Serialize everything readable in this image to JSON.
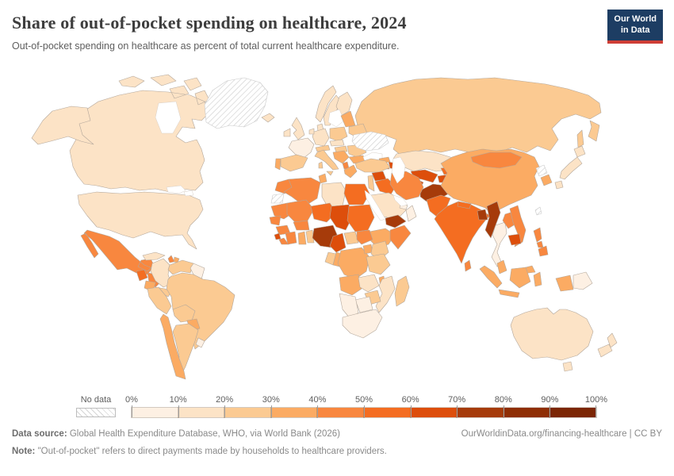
{
  "header": {
    "title": "Share of out-of-pocket spending on healthcare, 2024",
    "subtitle": "Out-of-pocket spending on healthcare as percent of total current healthcare expenditure.",
    "logo": {
      "line1": "Our World",
      "line2": "in Data",
      "bg_color": "#1d3d63",
      "accent_color": "#cf3e36"
    }
  },
  "legend": {
    "no_data_label": "No data",
    "tick_labels": [
      "0%",
      "10%",
      "20%",
      "30%",
      "40%",
      "50%",
      "60%",
      "70%",
      "80%",
      "90%",
      "100%"
    ],
    "bins": [
      "0-10",
      "10-20",
      "20-30",
      "30-40",
      "40-50",
      "50-60",
      "60-70",
      "70-80",
      "80-90",
      "90-100"
    ],
    "colors": [
      "#fdf0e3",
      "#fce3c6",
      "#fbca92",
      "#fbab63",
      "#f8873f",
      "#f46d21",
      "#dd4e0b",
      "#a63b0a",
      "#8f2e04",
      "#7c2604"
    ]
  },
  "footer": {
    "datasource_label": "Data source:",
    "datasource_text": " Global Health Expenditure Database, WHO, via World Bank (2026)",
    "attribution": "OurWorldinData.org/financing-healthcare | CC BY",
    "note_label": "Note:",
    "note_text": " \"Out-of-pocket\" refers to direct payments made by households to healthcare providers."
  },
  "chart_data": {
    "type": "choropleth_map",
    "title": "Share of out-of-pocket spending on healthcare, 2024",
    "unit": "% of total current healthcare expenditure",
    "legend_position": "bottom",
    "no_data_style": "diagonal-hatch",
    "bin_width_percent": 10,
    "range": [
      0,
      100
    ],
    "countries": {
      "canada": "10-20",
      "usa": "10-20",
      "greenland": "no-data",
      "mexico": "40-50",
      "guatemala": "50-60",
      "honduras-nicaragua": "40-50",
      "costa-rica-panama": "20-30",
      "cuba": "10-20",
      "haiti": "40-50",
      "dominican-republic": "30-40",
      "colombia": "10-20",
      "venezuela": "20-30",
      "guyana-suriname": "0-10",
      "ecuador": "30-40",
      "peru": "20-30",
      "brazil": "20-30",
      "bolivia": "20-30",
      "paraguay": "30-40",
      "chile": "30-40",
      "argentina": "20-30",
      "uruguay": "0-10",
      "iceland": "10-20",
      "uk": "10-20",
      "ireland": "10-20",
      "norway": "10-20",
      "sweden": "10-20",
      "finland": "10-20",
      "denmark": "10-20",
      "germany": "10-20",
      "netherlands": "10-20",
      "france": "0-10",
      "spain": "20-30",
      "portugal": "30-40",
      "italy": "20-30",
      "switzerland-austria": "20-30",
      "czech-slovakia": "10-20",
      "poland": "20-30",
      "hungary": "20-30",
      "balkans-west": "30-40",
      "albania": "40-50",
      "greece": "30-40",
      "bulgaria": "30-40",
      "romania": "20-30",
      "baltics": "30-40",
      "belarus": "20-30",
      "ukraine": "no-data",
      "russia": "20-30",
      "kazakhstan": "10-20",
      "uzbekistan": "60-70",
      "turkmenistan": "60-70",
      "kyrgyzstan": "50-60",
      "tajikistan": "60-70",
      "afghanistan": "70-80",
      "georgia": "30-40",
      "armenia": "40-50",
      "azerbaijan": "60-70",
      "turkey": "20-30",
      "syria": "60-70",
      "levant": "20-30",
      "iraq": "50-60",
      "iran": "40-50",
      "saudi-arabia": "10-20",
      "yemen": "70-80",
      "oman": "0-10",
      "uae": "0-10",
      "morocco": "40-50",
      "western-sahara": "no-data",
      "algeria": "40-50",
      "tunisia": "30-40",
      "libya": "10-20",
      "egypt": "50-60",
      "mauritania": "40-50",
      "mali": "40-50",
      "niger": "50-60",
      "chad": "60-70",
      "sudan": "50-60",
      "ethiopia": "30-40",
      "somalia": "40-50",
      "senegal": "40-50",
      "guinea": "40-50",
      "sierra-leone": "60-70",
      "liberia": "40-50",
      "cote-divoire": "40-50",
      "ghana": "30-40",
      "togo-benin": "20-30",
      "burkina-faso": "40-50",
      "nigeria": "70-80",
      "cameroon": "60-70",
      "central-african-republic": "20-30",
      "south-sudan": "40-50",
      "gabon": "20-30",
      "congo": "30-40",
      "drc": "30-40",
      "uganda": "30-40",
      "kenya": "20-30",
      "tanzania": "20-30",
      "angola": "30-40",
      "zambia": "10-20",
      "malawi": "30-40",
      "mozambique": "10-20",
      "zimbabwe": "20-30",
      "botswana": "0-10",
      "namibia": "0-10",
      "south-africa": "0-10",
      "madagascar": "20-30",
      "pakistan": "50-60",
      "india": "50-60",
      "nepal": "50-60",
      "bangladesh": "70-80",
      "sri-lanka": "40-50",
      "myanmar": "70-80",
      "thailand": "0-10",
      "laos": "40-50",
      "vietnam": "40-50",
      "cambodia": "60-70",
      "malaysia": "30-40",
      "indonesia": "30-40",
      "philippines": "40-50",
      "papua-new-guinea": "0-10",
      "china": "30-40",
      "mongolia": "40-50",
      "north-korea": "no-data",
      "south-korea": "30-40",
      "japan": "10-20",
      "taiwan": "no-data",
      "australia": "10-20",
      "new-zealand": "10-20"
    }
  }
}
